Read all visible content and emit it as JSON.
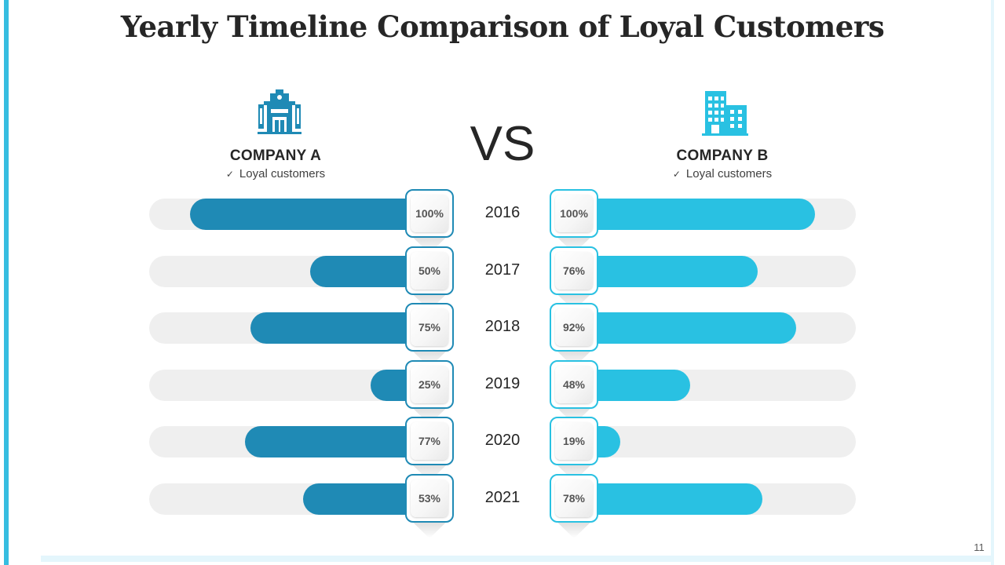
{
  "title": "Yearly Timeline Comparison of Loyal Customers",
  "vs_label": "VS",
  "company_a": {
    "name": "COMPANY  A",
    "subtitle": "Loyal customers",
    "check": "✓",
    "icon": "school-building-icon",
    "color": "#1f8ab5"
  },
  "company_b": {
    "name": "COMPANY  B",
    "subtitle": "Loyal customers",
    "check": "✓",
    "icon": "office-buildings-icon",
    "color": "#29c1e2"
  },
  "page_number": "11",
  "chart_data": {
    "type": "bar",
    "orientation": "horizontal-butterfly",
    "title": "Yearly Timeline Comparison of Loyal Customers",
    "categories": [
      "2016",
      "2017",
      "2018",
      "2019",
      "2020",
      "2021"
    ],
    "series": [
      {
        "name": "COMPANY  A",
        "values": [
          100,
          50,
          75,
          25,
          77,
          53
        ],
        "labels": [
          "100%",
          "50%",
          "75%",
          "25%",
          "77%",
          "53%"
        ]
      },
      {
        "name": "COMPANY  B",
        "values": [
          100,
          76,
          92,
          48,
          19,
          78
        ],
        "labels": [
          "100%",
          "76%",
          "92%",
          "48%",
          "19%",
          "78%"
        ]
      }
    ],
    "unit": "%",
    "xlim": [
      0,
      100
    ]
  }
}
